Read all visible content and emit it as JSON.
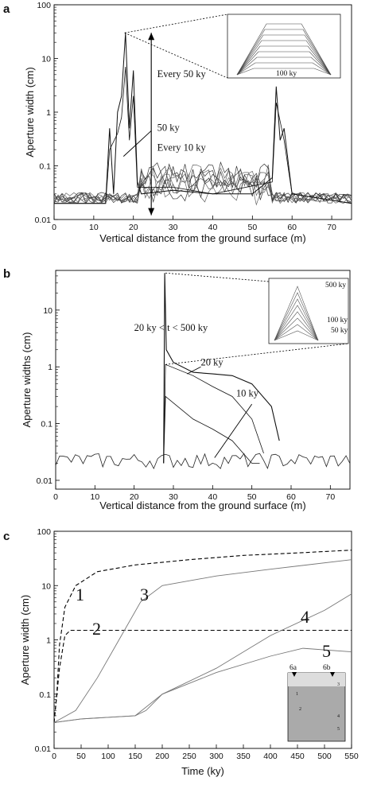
{
  "chart_data": [
    {
      "panel": "a",
      "type": "line",
      "xlabel": "Vertical distance from the ground surface (m)",
      "ylabel": "Aperture width (cm)",
      "xlim": [
        0,
        75
      ],
      "ylim": [
        0.01,
        100
      ],
      "yscale": "log",
      "xticks": [
        0,
        10,
        20,
        30,
        40,
        50,
        60,
        70
      ],
      "yticks": [
        0.01,
        0.1,
        1,
        10,
        100
      ],
      "ytick_labels": [
        "0.01",
        "0.1",
        "1",
        "10",
        "100"
      ],
      "annotations": [
        "Every 50 ky",
        "50 ky",
        "Every 10 ky"
      ],
      "inset": {
        "label": "100 ky"
      },
      "series": [
        {
          "values": [
            [
              0,
              0.02
            ],
            [
              13,
              0.02
            ],
            [
              14,
              0.5
            ],
            [
              15,
              0.03
            ],
            [
              16,
              1.0
            ],
            [
              17,
              2.0
            ],
            [
              18,
              30
            ],
            [
              19,
              0.5
            ],
            [
              20,
              6
            ],
            [
              21,
              0.05
            ],
            [
              22,
              0.03
            ],
            [
              30,
              0.035
            ],
            [
              40,
              0.03
            ],
            [
              50,
              0.03
            ],
            [
              55,
              0.06
            ],
            [
              56,
              3.0
            ],
            [
              57,
              0.3
            ],
            [
              58,
              0.5
            ],
            [
              60,
              0.03
            ],
            [
              75,
              0.02
            ]
          ]
        },
        {
          "values": [
            [
              0,
              0.02
            ],
            [
              13,
              0.02
            ],
            [
              14,
              0.2
            ],
            [
              16,
              0.4
            ],
            [
              17,
              0.8
            ],
            [
              18,
              7
            ],
            [
              19,
              0.3
            ],
            [
              20,
              2
            ],
            [
              21,
              0.04
            ],
            [
              30,
              0.04
            ],
            [
              40,
              0.03
            ],
            [
              55,
              0.05
            ],
            [
              56,
              1.5
            ],
            [
              58,
              0.3
            ],
            [
              60,
              0.03
            ],
            [
              75,
              0.02
            ]
          ]
        }
      ]
    },
    {
      "panel": "b",
      "type": "line",
      "xlabel": "Vertical distance from the ground surface (m)",
      "ylabel": "Aperture widths (cm)",
      "xlim": [
        0,
        75
      ],
      "ylim": [
        0.007,
        50
      ],
      "yscale": "log",
      "xticks": [
        0,
        10,
        20,
        30,
        40,
        50,
        60,
        70
      ],
      "yticks": [
        0.01,
        0.1,
        1,
        10
      ],
      "ytick_labels": [
        "0.01",
        "0.1",
        "1",
        "10"
      ],
      "annotations": [
        "20 ky < t < 500 ky",
        "20 ky",
        "10 ky"
      ],
      "inset": {
        "labels": [
          "500 ky",
          "100 ky",
          "50 ky"
        ]
      },
      "series": [
        {
          "values": [
            [
              27.5,
              0.02
            ],
            [
              27.8,
              45
            ],
            [
              28.2,
              2.0
            ],
            [
              30,
              1.2
            ],
            [
              35,
              0.8
            ],
            [
              40,
              0.75
            ],
            [
              45,
              0.7
            ],
            [
              50,
              0.5
            ],
            [
              55,
              0.2
            ],
            [
              57,
              0.05
            ]
          ]
        },
        {
          "values": [
            [
              27.5,
              0.02
            ],
            [
              28,
              1.1
            ],
            [
              35,
              0.7
            ],
            [
              40,
              0.45
            ],
            [
              45,
              0.3
            ],
            [
              50,
              0.12
            ],
            [
              53,
              0.03
            ]
          ]
        },
        {
          "values": [
            [
              27.5,
              0.02
            ],
            [
              28,
              0.3
            ],
            [
              35,
              0.12
            ],
            [
              40,
              0.08
            ],
            [
              45,
              0.05
            ],
            [
              50,
              0.02
            ],
            [
              52,
              0.02
            ]
          ]
        }
      ]
    },
    {
      "panel": "c",
      "type": "line",
      "xlabel": "Time (ky)",
      "ylabel": "Aperture width (cm)",
      "xlim": [
        0,
        550
      ],
      "ylim": [
        0.01,
        100
      ],
      "yscale": "log",
      "xticks": [
        0,
        50,
        100,
        150,
        200,
        250,
        300,
        350,
        400,
        450,
        500,
        550
      ],
      "yticks": [
        0.01,
        0.1,
        1,
        10,
        100
      ],
      "ytick_labels": [
        "0.01",
        "0.1",
        "1",
        "10",
        "100"
      ],
      "inset": {
        "labels": [
          "6a",
          "6b",
          "1",
          "2",
          "3",
          "4",
          "5"
        ]
      },
      "series": [
        {
          "name": "1",
          "style": "dashed",
          "values": [
            [
              0,
              0.03
            ],
            [
              5,
              0.1
            ],
            [
              10,
              0.8
            ],
            [
              20,
              4
            ],
            [
              40,
              10
            ],
            [
              80,
              18
            ],
            [
              150,
              24
            ],
            [
              250,
              30
            ],
            [
              350,
              36
            ],
            [
              450,
              40
            ],
            [
              550,
              45
            ]
          ]
        },
        {
          "name": "2",
          "style": "dashed",
          "values": [
            [
              0,
              0.03
            ],
            [
              10,
              0.3
            ],
            [
              20,
              1.2
            ],
            [
              30,
              1.5
            ],
            [
              550,
              1.5
            ]
          ]
        },
        {
          "name": "3",
          "style": "solid",
          "values": [
            [
              0,
              0.03
            ],
            [
              40,
              0.05
            ],
            [
              80,
              0.2
            ],
            [
              120,
              1
            ],
            [
              160,
              5
            ],
            [
              200,
              10
            ],
            [
              300,
              15
            ],
            [
              400,
              20
            ],
            [
              550,
              30
            ]
          ]
        },
        {
          "name": "4",
          "style": "solid",
          "values": [
            [
              0,
              0.03
            ],
            [
              50,
              0.035
            ],
            [
              150,
              0.04
            ],
            [
              170,
              0.05
            ],
            [
              200,
              0.1
            ],
            [
              300,
              0.3
            ],
            [
              400,
              1.2
            ],
            [
              500,
              3.5
            ],
            [
              550,
              7
            ]
          ]
        },
        {
          "name": "5",
          "style": "solid",
          "values": [
            [
              0,
              0.03
            ],
            [
              50,
              0.035
            ],
            [
              150,
              0.04
            ],
            [
              200,
              0.1
            ],
            [
              300,
              0.25
            ],
            [
              400,
              0.5
            ],
            [
              460,
              0.7
            ],
            [
              550,
              0.6
            ]
          ]
        }
      ]
    }
  ]
}
